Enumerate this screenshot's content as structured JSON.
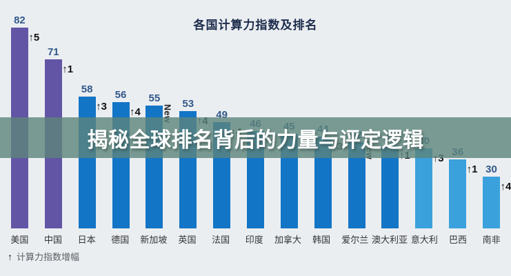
{
  "title": "各国计算力指数及排名",
  "banner": {
    "text": "揭秘全球排名背后的力量与评定逻辑"
  },
  "footnote": {
    "arrow": "↑",
    "label": "计算力指数增幅"
  },
  "chart_data": {
    "type": "bar",
    "title": "各国计算力指数及排名",
    "categories": [
      "美国",
      "中国",
      "日本",
      "德国",
      "新加坡",
      "英国",
      "法国",
      "印度",
      "加拿大",
      "韩国",
      "爱尔兰",
      "澳大利亚",
      "意大利",
      "巴西",
      "南非"
    ],
    "values": [
      82,
      71,
      58,
      56,
      55,
      53,
      49,
      46,
      45,
      44,
      42,
      41,
      40,
      36,
      30
    ],
    "rank_changes": [
      "↑5",
      "↑1",
      "↑3",
      "↑4",
      "New",
      "↑4",
      "↑4",
      "↑4",
      "↑3",
      "↑3",
      "New",
      "↑1",
      "↑3",
      "↑1",
      "↑4"
    ],
    "bar_color_groups": [
      "purple",
      "purple",
      "blue",
      "blue",
      "blue",
      "blue",
      "blue",
      "blue",
      "blue",
      "blue",
      "blue",
      "blue",
      "light_blue",
      "light_blue",
      "light_blue"
    ],
    "annotation_legend": "↑ 计算力指数增幅",
    "grid": false,
    "legend": false,
    "value_axis_visible": false
  },
  "colors": {
    "background": "#ebeef1",
    "purple": "#6355a5",
    "blue": "#1375c6",
    "light_blue": "#3aa1dd",
    "value_label": "#31588a",
    "country_label": "#333333",
    "title": "#1d2c4c",
    "arrow": "#111111",
    "footnote_text": "#596066",
    "banner_bg": "#5d847c",
    "banner_text": "#ffffff"
  }
}
